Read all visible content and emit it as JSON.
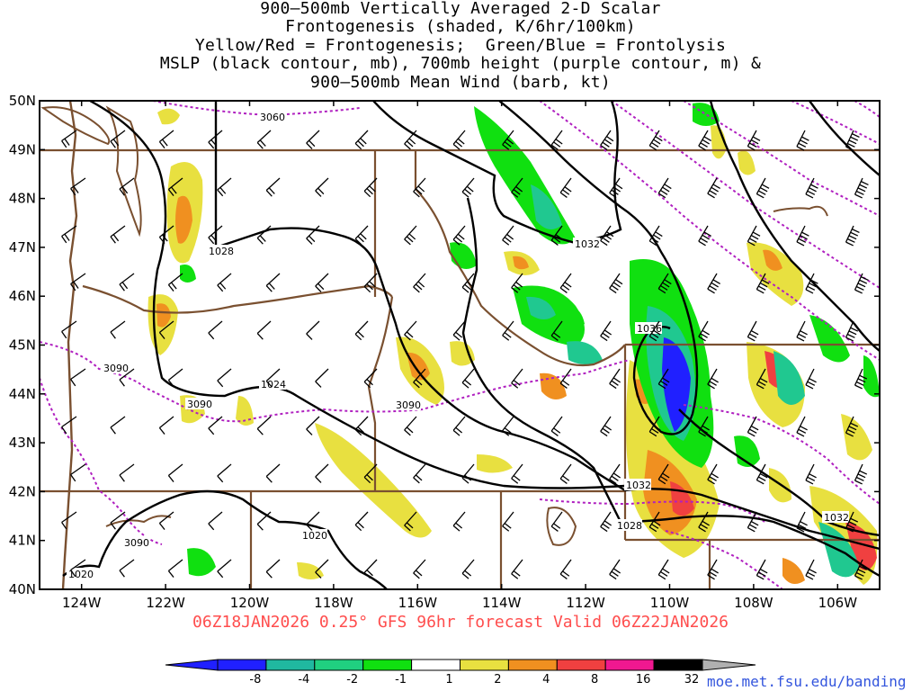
{
  "title_lines": [
    "900–500mb Vertically Averaged 2-D Scalar",
    "Frontogenesis (shaded, K/6hr/100km)",
    "Yellow/Red = Frontogenesis;  Green/Blue = Frontolysis",
    "MSLP (black contour, mb), 700mb height (purple contour, m) &",
    "900–500mb Mean Wind (barb, kt)"
  ],
  "map": {
    "lon_range": [
      -125,
      -105
    ],
    "lat_range": [
      40,
      50
    ],
    "lat_labels": [
      "40N",
      "41N",
      "42N",
      "43N",
      "44N",
      "45N",
      "46N",
      "47N",
      "48N",
      "49N",
      "50N"
    ],
    "lon_labels": [
      "124W",
      "122W",
      "120W",
      "118W",
      "116W",
      "114W",
      "112W",
      "110W",
      "108W",
      "106W"
    ],
    "mslp_labels": [
      "1028",
      "1032",
      "1036",
      "1024",
      "1032",
      "1028",
      "1032",
      "1020",
      "1020"
    ],
    "height_labels": [
      "3060",
      "3090",
      "3090",
      "3090",
      "3090"
    ]
  },
  "footer": "06Z18JAN2026 0.25° GFS 96hr forecast Valid 06Z22JAN2026",
  "credit": "moe.met.fsu.edu/banding",
  "colorbar": {
    "labels": [
      "-8",
      "-4",
      "-2",
      "-1",
      "1",
      "2",
      "4",
      "8",
      "16",
      "32"
    ],
    "colors": [
      "#2020ff",
      "#20b8a0",
      "#20d080",
      "#10e010",
      "#ffffff",
      "#e8e040",
      "#f09020",
      "#f04040",
      "#f01890",
      "#000000"
    ],
    "low_arrow_color": "#2020ff",
    "high_arrow_color": "#b0b0b0"
  },
  "colors": {
    "mslp": "#000000",
    "height": "#b020c0",
    "border": "#7a5030",
    "frontogenesis_weak": "#e8e040",
    "frontogenesis_mod": "#f09020",
    "frontogenesis_strong": "#f04040",
    "frontolysis_weak": "#10e010",
    "frontolysis_mod": "#20c890",
    "frontolysis_strong": "#2020ff"
  }
}
